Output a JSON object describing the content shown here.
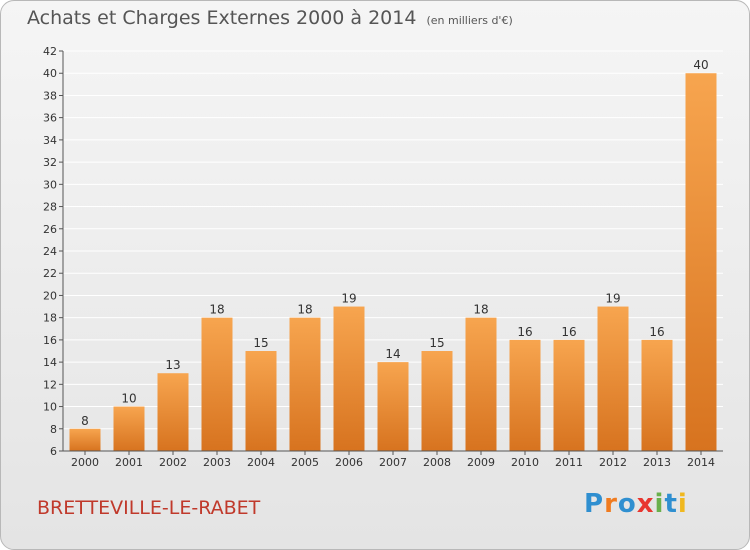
{
  "header": {
    "title": "Achats et Charges Externes 2000 à 2014",
    "subtitle": "(en milliers d'€)"
  },
  "commune": "BRETTEVILLE-LE-RABET",
  "logo": {
    "text": "Proxiti",
    "colors": [
      "#2f8fd0",
      "#f07b1f",
      "#2f8fd0",
      "#e8362f",
      "#6ab04c",
      "#2f8fd0",
      "#f0b81f"
    ]
  },
  "colors": {
    "bar_light": "#f7a54f",
    "bar_dark": "#d7731f",
    "grid": "#ffffff",
    "axis": "#555555",
    "title": "#555555",
    "commune": "#c0392b"
  },
  "chart_data": {
    "type": "bar",
    "title": "Achats et Charges Externes 2000 à 2014",
    "subtitle": "(en milliers d'€)",
    "xlabel": "",
    "ylabel": "",
    "categories": [
      "2000",
      "2001",
      "2002",
      "2003",
      "2004",
      "2005",
      "2006",
      "2007",
      "2008",
      "2009",
      "2010",
      "2011",
      "2012",
      "2013",
      "2014"
    ],
    "values": [
      8,
      10,
      13,
      18,
      15,
      18,
      19,
      14,
      15,
      18,
      16,
      16,
      19,
      16,
      40
    ],
    "ylim": [
      6,
      42
    ],
    "yticks": [
      6,
      8,
      10,
      12,
      14,
      16,
      18,
      20,
      22,
      24,
      26,
      28,
      30,
      32,
      34,
      36,
      38,
      40,
      42
    ],
    "grid": true,
    "data_labels": true
  }
}
